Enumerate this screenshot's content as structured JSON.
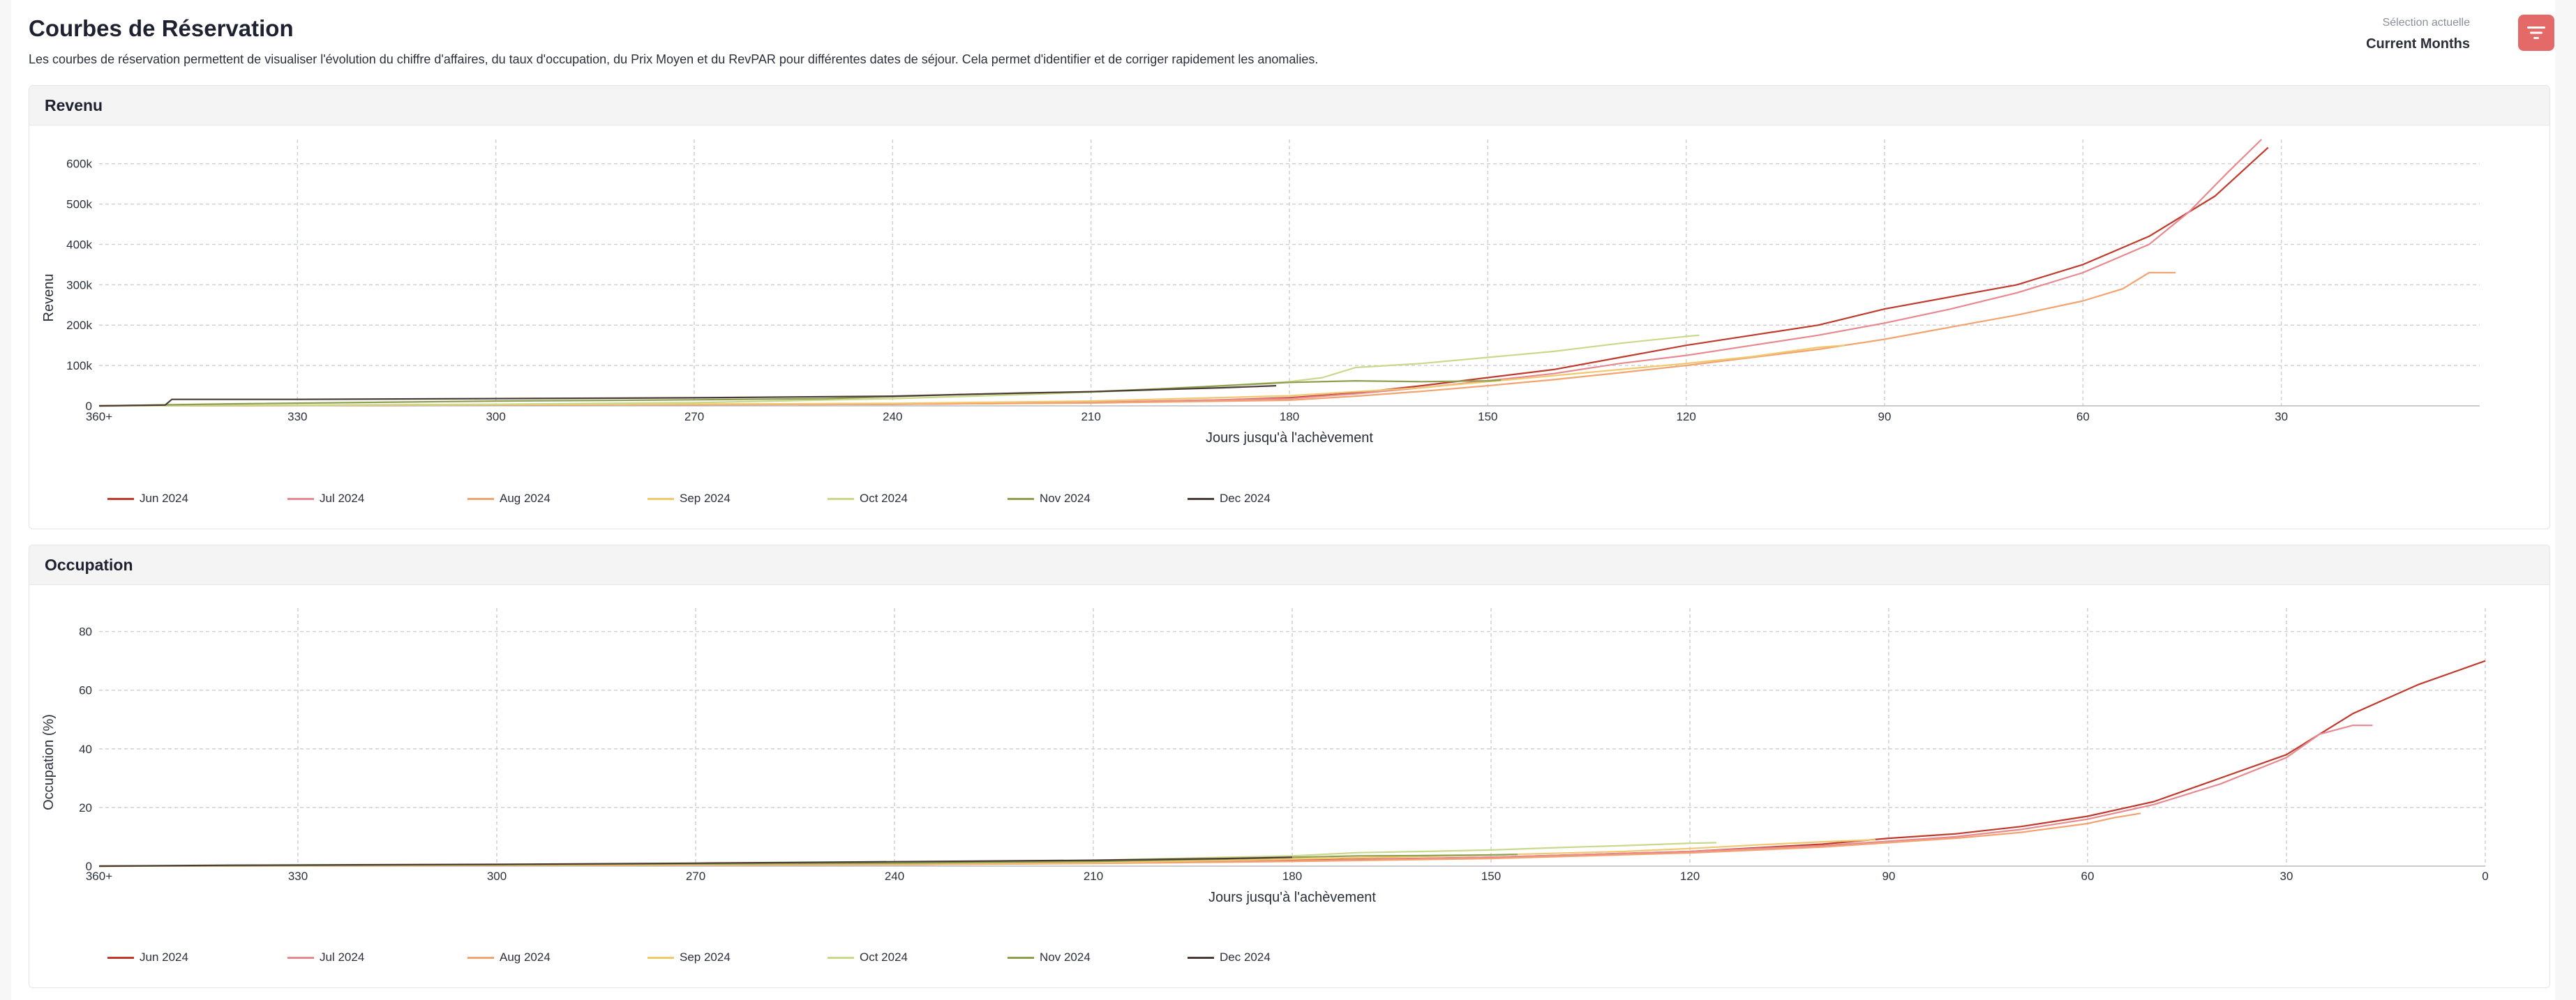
{
  "header": {
    "title": "Courbes de Réservation",
    "description": "Les courbes de réservation permettent de visualiser l'évolution du chiffre d'affaires, du taux d'occupation, du Prix Moyen et du RevPAR pour différentes dates de séjour. Cela permet d'identifier et de corriger rapidement les anomalies.",
    "selection_label": "Sélection actuelle",
    "selection_value": "Current Months",
    "filter_icon": "filter-lines-icon",
    "accent_color": "#e46a6a"
  },
  "chart_data": [
    {
      "type": "line",
      "title": "Revenu",
      "xlabel": "Jours jusqu'à l'achèvement",
      "ylabel": "Revenu",
      "x_ticks": [
        "360+",
        "330",
        "300",
        "270",
        "240",
        "210",
        "180",
        "150",
        "120",
        "90",
        "60",
        "30"
      ],
      "y_ticks": [
        "0",
        "100k",
        "200k",
        "300k",
        "400k",
        "500k",
        "600k"
      ],
      "xlim": [
        360,
        0
      ],
      "ylim": [
        0,
        660000
      ],
      "x_reversed": true,
      "grid": true,
      "legend_position": "bottom-left",
      "series": [
        {
          "name": "Jun 2024",
          "color": "#c0392b",
          "points": [
            [
              360,
              0
            ],
            [
              300,
              2000
            ],
            [
              240,
              4000
            ],
            [
              210,
              8000
            ],
            [
              190,
              15000
            ],
            [
              180,
              20000
            ],
            [
              170,
              32000
            ],
            [
              160,
              50000
            ],
            [
              150,
              70000
            ],
            [
              140,
              90000
            ],
            [
              130,
              120000
            ],
            [
              120,
              150000
            ],
            [
              110,
              175000
            ],
            [
              100,
              200000
            ],
            [
              90,
              240000
            ],
            [
              80,
              270000
            ],
            [
              70,
              300000
            ],
            [
              60,
              350000
            ],
            [
              50,
              420000
            ],
            [
              40,
              520000
            ],
            [
              32,
              640000
            ]
          ]
        },
        {
          "name": "Jul 2024",
          "color": "#e8888f",
          "points": [
            [
              360,
              0
            ],
            [
              300,
              3000
            ],
            [
              240,
              5000
            ],
            [
              210,
              9000
            ],
            [
              180,
              18000
            ],
            [
              170,
              30000
            ],
            [
              160,
              45000
            ],
            [
              150,
              62000
            ],
            [
              140,
              80000
            ],
            [
              130,
              105000
            ],
            [
              120,
              125000
            ],
            [
              110,
              150000
            ],
            [
              100,
              175000
            ],
            [
              90,
              205000
            ],
            [
              80,
              240000
            ],
            [
              70,
              280000
            ],
            [
              60,
              330000
            ],
            [
              50,
              400000
            ],
            [
              44,
              480000
            ],
            [
              38,
              580000
            ],
            [
              33,
              660000
            ]
          ]
        },
        {
          "name": "Aug 2024",
          "color": "#f2a36f",
          "points": [
            [
              360,
              0
            ],
            [
              300,
              2000
            ],
            [
              240,
              4000
            ],
            [
              210,
              7000
            ],
            [
              180,
              14000
            ],
            [
              170,
              24000
            ],
            [
              160,
              36000
            ],
            [
              150,
              50000
            ],
            [
              140,
              65000
            ],
            [
              130,
              82000
            ],
            [
              120,
              100000
            ],
            [
              110,
              120000
            ],
            [
              100,
              140000
            ],
            [
              90,
              165000
            ],
            [
              80,
              195000
            ],
            [
              70,
              225000
            ],
            [
              60,
              260000
            ],
            [
              54,
              290000
            ],
            [
              50,
              330000
            ],
            [
              46,
              330000
            ]
          ]
        },
        {
          "name": "Sep 2024",
          "color": "#f1c86d",
          "points": [
            [
              360,
              0
            ],
            [
              300,
              3000
            ],
            [
              240,
              6000
            ],
            [
              210,
              12000
            ],
            [
              180,
              25000
            ],
            [
              170,
              35000
            ],
            [
              160,
              45000
            ],
            [
              150,
              60000
            ],
            [
              140,
              75000
            ],
            [
              130,
              90000
            ],
            [
              120,
              105000
            ],
            [
              110,
              122000
            ],
            [
              100,
              145000
            ],
            [
              96,
              150000
            ]
          ]
        },
        {
          "name": "Oct 2024",
          "color": "#c8d98a",
          "points": [
            [
              360,
              0
            ],
            [
              300,
              4000
            ],
            [
              270,
              8000
            ],
            [
              240,
              18000
            ],
            [
              220,
              28000
            ],
            [
              200,
              40000
            ],
            [
              190,
              50000
            ],
            [
              180,
              60000
            ],
            [
              175,
              70000
            ],
            [
              170,
              95000
            ],
            [
              160,
              105000
            ],
            [
              150,
              120000
            ],
            [
              140,
              135000
            ],
            [
              130,
              155000
            ],
            [
              120,
              172000
            ],
            [
              118,
              175000
            ]
          ]
        },
        {
          "name": "Nov 2024",
          "color": "#8ea04f",
          "points": [
            [
              360,
              0
            ],
            [
              340,
              5000
            ],
            [
              300,
              12000
            ],
            [
              270,
              15000
            ],
            [
              250,
              18000
            ],
            [
              230,
              28000
            ],
            [
              210,
              35000
            ],
            [
              200,
              42000
            ],
            [
              190,
              50000
            ],
            [
              180,
              58000
            ],
            [
              170,
              62000
            ],
            [
              160,
              60000
            ],
            [
              150,
              62000
            ],
            [
              148,
              64000
            ]
          ]
        },
        {
          "name": "Dec 2024",
          "color": "#4a3b36",
          "points": [
            [
              360,
              0
            ],
            [
              350,
              2000
            ],
            [
              349,
              16000
            ],
            [
              330,
              16000
            ],
            [
              300,
              18000
            ],
            [
              270,
              20000
            ],
            [
              240,
              24000
            ],
            [
              220,
              32000
            ],
            [
              210,
              35000
            ],
            [
              200,
              40000
            ],
            [
              190,
              45000
            ],
            [
              182,
              50000
            ]
          ]
        }
      ]
    },
    {
      "type": "line",
      "title": "Occupation",
      "xlabel": "Jours jusqu'à l'achèvement",
      "ylabel": "Occupation (%)",
      "x_ticks": [
        "360+",
        "330",
        "300",
        "270",
        "240",
        "210",
        "180",
        "150",
        "120",
        "90",
        "60",
        "30",
        "0"
      ],
      "y_ticks": [
        "0",
        "20",
        "40",
        "60",
        "80"
      ],
      "xlim": [
        360,
        0
      ],
      "ylim": [
        0,
        88
      ],
      "x_reversed": true,
      "grid": true,
      "legend_position": "bottom-left",
      "series": [
        {
          "name": "Jun 2024",
          "color": "#c0392b",
          "points": [
            [
              360,
              0
            ],
            [
              300,
              0.3
            ],
            [
              240,
              0.6
            ],
            [
              210,
              1
            ],
            [
              180,
              2
            ],
            [
              150,
              3
            ],
            [
              120,
              5
            ],
            [
              100,
              7.5
            ],
            [
              90,
              9.5
            ],
            [
              80,
              11
            ],
            [
              70,
              13.5
            ],
            [
              60,
              17
            ],
            [
              50,
              22
            ],
            [
              40,
              30
            ],
            [
              30,
              38
            ],
            [
              25,
              45
            ],
            [
              20,
              52
            ],
            [
              15,
              57
            ],
            [
              10,
              62
            ],
            [
              5,
              66
            ],
            [
              0,
              70
            ]
          ]
        },
        {
          "name": "Jul 2024",
          "color": "#e8888f",
          "points": [
            [
              360,
              0
            ],
            [
              300,
              0.3
            ],
            [
              240,
              0.5
            ],
            [
              210,
              1
            ],
            [
              180,
              1.8
            ],
            [
              150,
              3
            ],
            [
              120,
              5
            ],
            [
              100,
              7
            ],
            [
              90,
              8.5
            ],
            [
              80,
              10
            ],
            [
              70,
              12.5
            ],
            [
              60,
              16
            ],
            [
              50,
              21
            ],
            [
              40,
              28
            ],
            [
              30,
              37
            ],
            [
              25,
              45
            ],
            [
              20,
              48
            ],
            [
              17,
              48
            ]
          ]
        },
        {
          "name": "Aug 2024",
          "color": "#f2a36f",
          "points": [
            [
              360,
              0
            ],
            [
              300,
              0.2
            ],
            [
              240,
              0.5
            ],
            [
              210,
              0.9
            ],
            [
              180,
              1.6
            ],
            [
              150,
              2.6
            ],
            [
              120,
              4.5
            ],
            [
              100,
              6.5
            ],
            [
              90,
              8
            ],
            [
              80,
              9.5
            ],
            [
              70,
              11.5
            ],
            [
              60,
              14.5
            ],
            [
              56,
              16.5
            ],
            [
              52,
              18
            ]
          ]
        },
        {
          "name": "Sep 2024",
          "color": "#f1c86d",
          "points": [
            [
              360,
              0
            ],
            [
              300,
              0.3
            ],
            [
              240,
              0.7
            ],
            [
              210,
              1.2
            ],
            [
              180,
              2.4
            ],
            [
              150,
              3.8
            ],
            [
              130,
              5
            ],
            [
              120,
              6
            ],
            [
              110,
              7.2
            ],
            [
              100,
              8.3
            ],
            [
              92,
              9
            ]
          ]
        },
        {
          "name": "Oct 2024",
          "color": "#c8d98a",
          "points": [
            [
              360,
              0
            ],
            [
              300,
              0.5
            ],
            [
              240,
              1
            ],
            [
              210,
              2
            ],
            [
              190,
              3
            ],
            [
              180,
              3.5
            ],
            [
              170,
              4.6
            ],
            [
              160,
              5
            ],
            [
              150,
              5.5
            ],
            [
              140,
              6.3
            ],
            [
              130,
              7
            ],
            [
              120,
              7.8
            ],
            [
              116,
              8
            ]
          ]
        },
        {
          "name": "Nov 2024",
          "color": "#8ea04f",
          "points": [
            [
              360,
              0
            ],
            [
              300,
              0.5
            ],
            [
              240,
              1
            ],
            [
              210,
              1.6
            ],
            [
              190,
              2.4
            ],
            [
              180,
              3
            ],
            [
              170,
              3.5
            ],
            [
              160,
              3.6
            ],
            [
              150,
              3.8
            ],
            [
              146,
              4
            ]
          ]
        },
        {
          "name": "Dec 2024",
          "color": "#4a3b36",
          "points": [
            [
              360,
              0
            ],
            [
              340,
              0.3
            ],
            [
              300,
              0.6
            ],
            [
              270,
              1
            ],
            [
              240,
              1.5
            ],
            [
              210,
              2
            ],
            [
              190,
              2.6
            ],
            [
              180,
              3
            ]
          ]
        }
      ]
    }
  ]
}
